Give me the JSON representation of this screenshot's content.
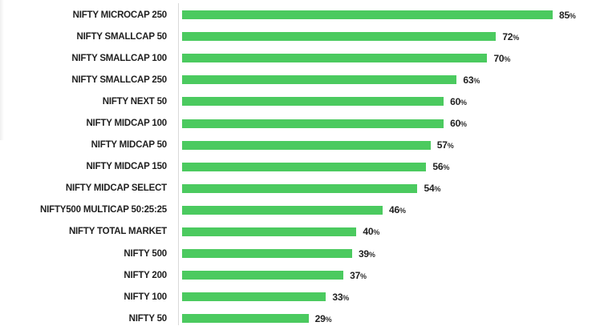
{
  "chart_data": {
    "type": "bar",
    "orientation": "horizontal",
    "title": "",
    "categories": [
      "NIFTY MICROCAP 250",
      "NIFTY SMALLCAP 50",
      "NIFTY SMALLCAP 100",
      "NIFTY SMALLCAP 250",
      "NIFTY NEXT 50",
      "NIFTY MIDCAP 100",
      "NIFTY MIDCAP 50",
      "NIFTY MIDCAP 150",
      "NIFTY MIDCAP SELECT",
      "NIFTY500 MULTICAP 50:25:25",
      "NIFTY TOTAL MARKET",
      "NIFTY 500",
      "NIFTY 200",
      "NIFTY 100",
      "NIFTY 50"
    ],
    "values": [
      85,
      72,
      70,
      63,
      60,
      60,
      57,
      56,
      54,
      46,
      40,
      39,
      37,
      33,
      29
    ],
    "value_suffix": "%",
    "xlim": [
      0,
      100
    ],
    "grid": false,
    "legend": false,
    "data_labels": true,
    "colors": {
      "bar": "#4bca5f",
      "axis_line": "#d9d9d9",
      "category_label": "#1f1f1f",
      "value_label": "#1f1f1f",
      "background": "#ffffff"
    }
  }
}
